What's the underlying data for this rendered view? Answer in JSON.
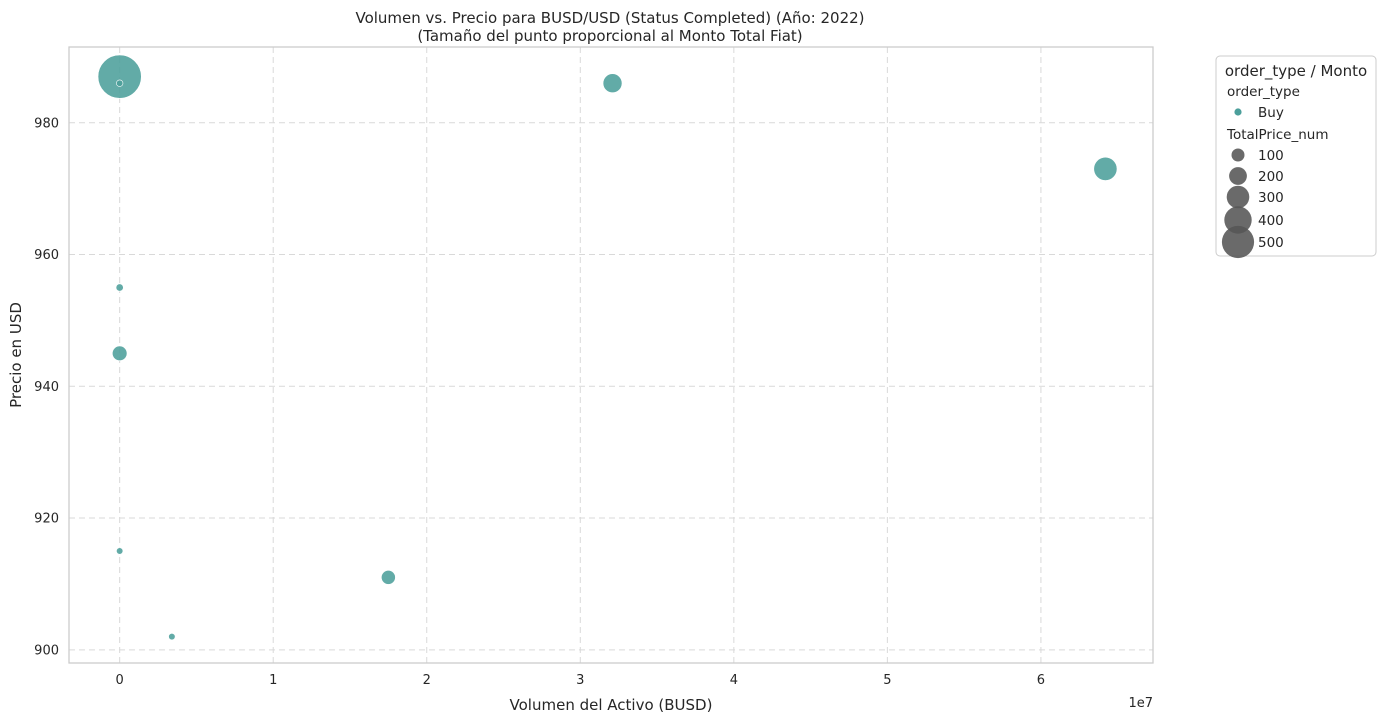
{
  "chart_data": {
    "type": "scatter",
    "title": "Volumen vs. Precio para BUSD/USD (Status Completed) (Año: 2022)",
    "subtitle": "(Tamaño del punto proporcional al Monto Total Fiat)",
    "xlabel": "Volumen del Activo (BUSD)",
    "ylabel": "Precio en USD",
    "x_offset_label": "1e7",
    "xlim": [
      -0.33,
      6.73
    ],
    "ylim": [
      898,
      991.5
    ],
    "x_ticks": [
      0,
      1,
      2,
      3,
      4,
      5,
      6
    ],
    "x_tick_labels": [
      "0",
      "1",
      "2",
      "3",
      "4",
      "5",
      "6"
    ],
    "y_ticks": [
      900,
      920,
      940,
      960,
      980
    ],
    "y_tick_labels": [
      "900",
      "920",
      "940",
      "960",
      "980"
    ],
    "grid": true,
    "legend_position": "outside-top-right",
    "colors": {
      "point": "#4c9f9b",
      "legend_size_marker": "#555555",
      "grid": "#d9d9d9",
      "spine": "#cccccc"
    },
    "legend": {
      "title": "order_type / Monto",
      "hue_title": "order_type",
      "hue_entries": [
        "Buy"
      ],
      "size_title": "TotalPrice_num",
      "size_entries": [
        {
          "label": "100",
          "value": 100
        },
        {
          "label": "200",
          "value": 200
        },
        {
          "label": "300",
          "value": 300
        },
        {
          "label": "400",
          "value": 400
        },
        {
          "label": "500",
          "value": 500
        }
      ]
    },
    "series": [
      {
        "name": "Buy",
        "points": [
          {
            "x": 0.0,
            "y": 987,
            "size": 520
          },
          {
            "x": 0.0,
            "y": 986,
            "size": 12
          },
          {
            "x": 3.21,
            "y": 986,
            "size": 100
          },
          {
            "x": 6.42,
            "y": 973,
            "size": 150
          },
          {
            "x": 0.0,
            "y": 955,
            "size": 15
          },
          {
            "x": 0.0,
            "y": 945,
            "size": 60
          },
          {
            "x": 0.0,
            "y": 915,
            "size": 12
          },
          {
            "x": 1.75,
            "y": 911,
            "size": 55
          },
          {
            "x": 0.34,
            "y": 902,
            "size": 12
          }
        ]
      }
    ]
  }
}
